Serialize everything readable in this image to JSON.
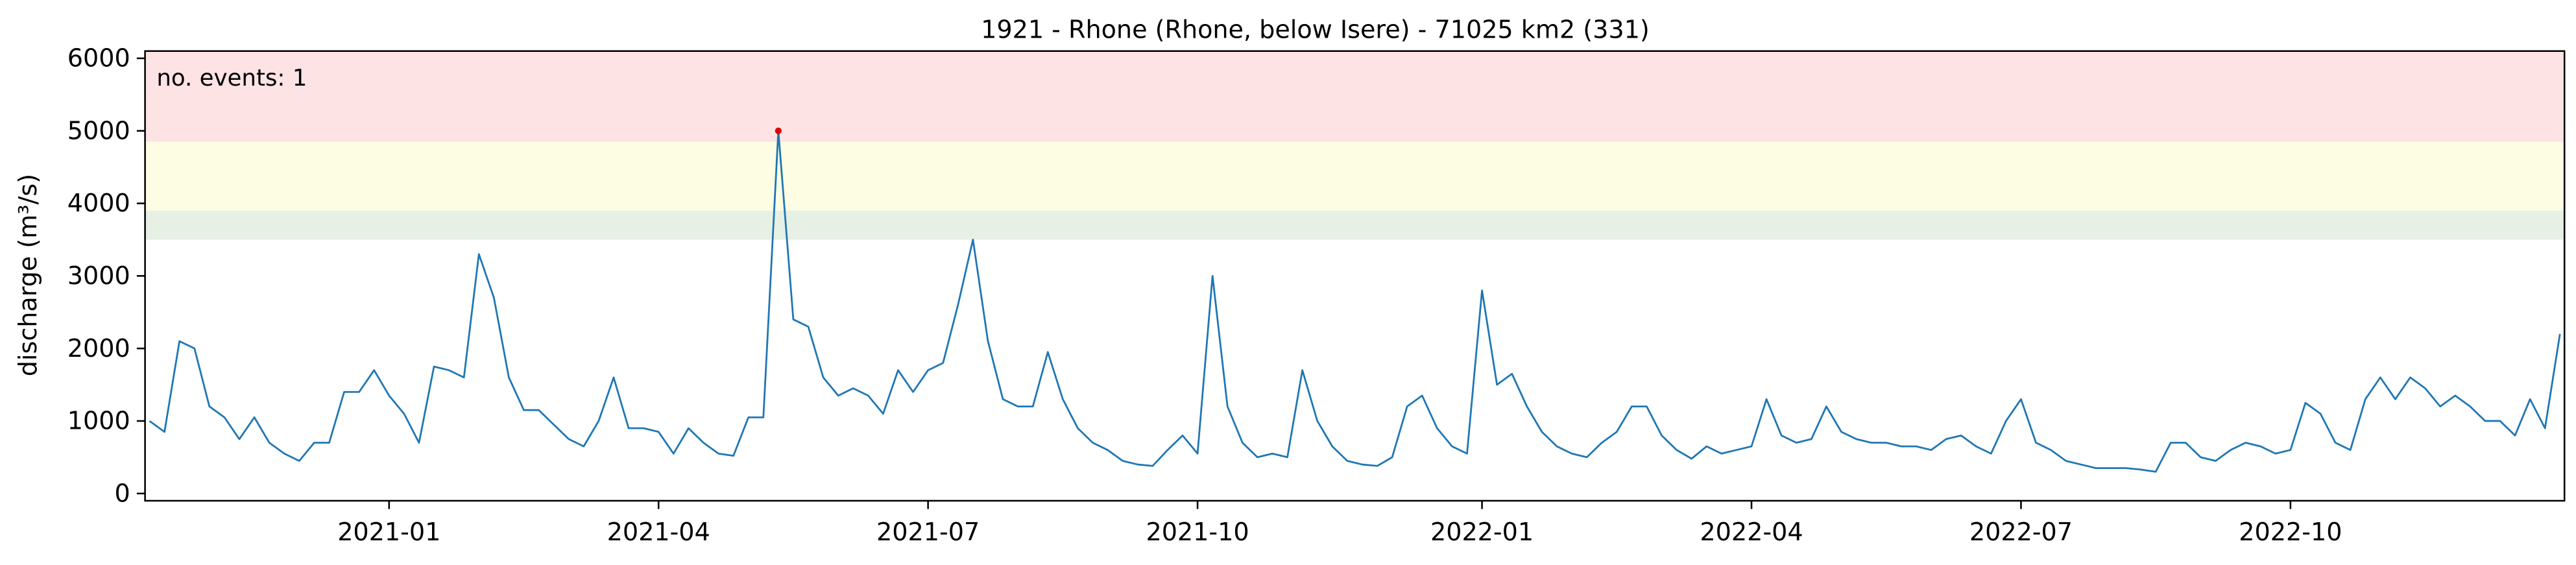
{
  "chart_data": {
    "type": "line",
    "title": "1921 - Rhone (Rhone, below Isere) - 71025 km2 (331)",
    "y_label": "discharge (m³/s)",
    "annotation": "no. events: 1",
    "annotation_color": "#e00000",
    "categories": [
      null,
      null,
      null,
      null,
      null,
      null,
      null,
      null,
      null,
      null,
      null,
      null,
      null,
      null,
      null,
      null,
      "2021-01",
      null,
      null,
      null,
      null,
      null,
      null,
      null,
      null,
      null,
      null,
      null,
      null,
      null,
      null,
      null,
      null,
      null,
      "2021-04",
      null,
      null,
      null,
      null,
      null,
      null,
      null,
      null,
      null,
      null,
      null,
      null,
      null,
      null,
      null,
      null,
      null,
      "2021-07",
      null,
      null,
      null,
      null,
      null,
      null,
      null,
      null,
      null,
      null,
      null,
      null,
      null,
      null,
      null,
      null,
      null,
      "2021-10",
      null,
      null,
      null,
      null,
      null,
      null,
      null,
      null,
      null,
      null,
      null,
      null,
      null,
      null,
      null,
      null,
      null,
      null,
      "2022-01",
      null,
      null,
      null,
      null,
      null,
      null,
      null,
      null,
      null,
      null,
      null,
      null,
      null,
      null,
      null,
      null,
      null,
      "2022-04",
      null,
      null,
      null,
      null,
      null,
      null,
      null,
      null,
      null,
      null,
      null,
      null,
      null,
      null,
      null,
      null,
      null,
      "2022-07",
      null,
      null,
      null,
      null,
      null,
      null,
      null,
      null,
      null,
      null,
      null,
      null,
      null,
      null,
      null,
      null,
      null,
      "2022-10",
      null,
      null,
      null,
      null,
      null,
      null,
      null,
      null,
      null,
      null,
      null,
      null,
      null,
      null,
      null,
      null,
      null,
      null
    ],
    "series": [
      {
        "name": "discharge",
        "color": "#1f77b4",
        "values": [
          1000,
          850,
          2100,
          2000,
          1200,
          1050,
          750,
          1050,
          700,
          550,
          450,
          700,
          700,
          1400,
          1400,
          1700,
          1350,
          1100,
          700,
          1750,
          1700,
          1600,
          3300,
          2700,
          1600,
          1150,
          1150,
          950,
          750,
          650,
          1000,
          1600,
          900,
          900,
          850,
          550,
          900,
          700,
          550,
          520,
          1050,
          1050,
          5000,
          2400,
          2300,
          1600,
          1350,
          1450,
          1350,
          1100,
          1700,
          1400,
          1700,
          1800,
          2600,
          3500,
          2100,
          1300,
          1200,
          1200,
          1950,
          1300,
          900,
          700,
          600,
          450,
          400,
          380,
          600,
          800,
          550,
          3000,
          1200,
          700,
          500,
          550,
          500,
          1700,
          1000,
          650,
          450,
          400,
          380,
          500,
          1200,
          1350,
          900,
          650,
          550,
          2800,
          1500,
          1650,
          1200,
          850,
          650,
          550,
          500,
          700,
          850,
          1200,
          1200,
          800,
          600,
          480,
          650,
          550,
          600,
          650,
          1300,
          800,
          700,
          750,
          1200,
          850,
          750,
          700,
          700,
          650,
          650,
          600,
          750,
          800,
          650,
          550,
          1000,
          1300,
          700,
          600,
          450,
          400,
          350,
          350,
          350,
          330,
          300,
          700,
          700,
          500,
          450,
          600,
          700,
          650,
          550,
          600,
          1250,
          1100,
          700,
          600,
          1300,
          1600,
          1300,
          1600,
          1450,
          1200,
          1350,
          1200,
          1000,
          1000,
          800,
          1300,
          900,
          2200
        ]
      }
    ],
    "event_points": [
      42
    ],
    "ylim": [
      -100,
      6100
    ],
    "yticks": [
      0,
      1000,
      2000,
      3000,
      4000,
      5000,
      6000
    ],
    "bands": [
      {
        "from": 3500,
        "to": 3900,
        "color": "#e6f0e4"
      },
      {
        "from": 3900,
        "to": 4850,
        "color": "#fdfde4"
      },
      {
        "from": 4850,
        "to": 6100,
        "color": "#fde3e4"
      }
    ],
    "grid": false
  }
}
